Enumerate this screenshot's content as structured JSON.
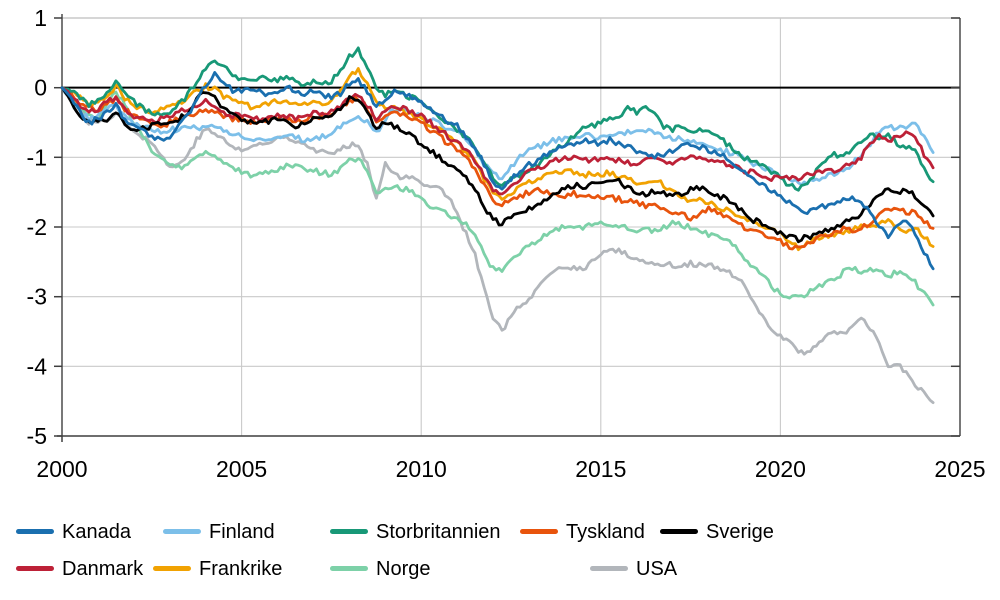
{
  "chart_data": {
    "type": "line",
    "title": "",
    "xlabel": "",
    "ylabel": "",
    "x_range": [
      2000,
      2025
    ],
    "y_range": [
      -5,
      1
    ],
    "x_tick_labels": [
      "2000",
      "2005",
      "2010",
      "2015",
      "2020",
      "2025"
    ],
    "x_tick_values": [
      2000,
      2005,
      2010,
      2015,
      2020,
      2025
    ],
    "y_tick_labels": [
      "1",
      "0",
      "-1",
      "-2",
      "-3",
      "-4",
      "-5"
    ],
    "y_tick_values": [
      1,
      0,
      -1,
      -2,
      -3,
      -4,
      -5
    ],
    "grid": true,
    "zero_line": true,
    "legend_position": "bottom-left",
    "x_start": 2000,
    "x_step": 0.25,
    "legend_rows": [
      [
        "Kanada",
        "Finland",
        "Storbritannien",
        "Tyskland",
        "Sverige"
      ],
      [
        "Danmark",
        "Frankrike",
        "Norge",
        "USA"
      ]
    ],
    "series": [
      {
        "name": "Kanada",
        "color": "#1A6FAF",
        "values": [
          0,
          -0.15,
          -0.35,
          -0.5,
          -0.45,
          -0.35,
          -0.25,
          -0.45,
          -0.55,
          -0.6,
          -0.7,
          -0.75,
          -0.7,
          -0.55,
          -0.4,
          -0.2,
          0.05,
          0.18,
          0.1,
          -0.05,
          -0.05,
          0,
          -0.05,
          -0.1,
          -0.05,
          0,
          -0.05,
          -0.1,
          -0.05,
          -0.1,
          -0.15,
          -0.08,
          0.05,
          0.12,
          -0.05,
          -0.3,
          -0.15,
          -0.05,
          -0.1,
          -0.15,
          -0.2,
          -0.3,
          -0.4,
          -0.5,
          -0.55,
          -0.7,
          -0.85,
          -1.1,
          -1.35,
          -1.45,
          -1.3,
          -1.2,
          -1.1,
          -1.05,
          -0.95,
          -0.9,
          -0.85,
          -0.8,
          -0.75,
          -0.8,
          -0.8,
          -0.75,
          -0.8,
          -0.85,
          -0.9,
          -0.95,
          -1,
          -0.95,
          -0.9,
          -0.85,
          -0.8,
          -0.85,
          -0.9,
          -0.95,
          -1,
          -1.1,
          -1.2,
          -1.3,
          -1.4,
          -1.5,
          -1.55,
          -1.65,
          -1.75,
          -1.8,
          -1.75,
          -1.7,
          -1.65,
          -1.6,
          -1.6,
          -1.65,
          -1.8,
          -2,
          -2.15,
          -2,
          -1.9,
          -2.1,
          -2.35,
          -2.6
        ]
      },
      {
        "name": "Finland",
        "color": "#7CBFE9",
        "values": [
          0,
          -0.2,
          -0.35,
          -0.45,
          -0.4,
          -0.3,
          -0.25,
          -0.4,
          -0.5,
          -0.55,
          -0.6,
          -0.65,
          -0.6,
          -0.6,
          -0.58,
          -0.58,
          -0.55,
          -0.58,
          -0.62,
          -0.68,
          -0.7,
          -0.72,
          -0.75,
          -0.72,
          -0.7,
          -0.7,
          -0.72,
          -0.75,
          -0.72,
          -0.7,
          -0.65,
          -0.55,
          -0.45,
          -0.4,
          -0.5,
          -0.65,
          -0.45,
          -0.3,
          -0.3,
          -0.35,
          -0.4,
          -0.45,
          -0.5,
          -0.6,
          -0.65,
          -0.75,
          -0.9,
          -1.1,
          -1.25,
          -1.3,
          -1.15,
          -1,
          -0.9,
          -0.85,
          -0.8,
          -0.75,
          -0.72,
          -0.7,
          -0.68,
          -0.7,
          -0.72,
          -0.7,
          -0.68,
          -0.65,
          -0.62,
          -0.6,
          -0.65,
          -0.7,
          -0.72,
          -0.75,
          -0.78,
          -0.8,
          -0.85,
          -0.9,
          -0.92,
          -0.95,
          -1,
          -1.1,
          -1.15,
          -1.2,
          -1.25,
          -1.32,
          -1.37,
          -1.35,
          -1.3,
          -1.28,
          -1.25,
          -1.2,
          -1.1,
          -0.95,
          -0.8,
          -0.62,
          -0.55,
          -0.6,
          -0.55,
          -0.52,
          -0.72,
          -0.93
        ]
      },
      {
        "name": "Storbritannien",
        "color": "#189877",
        "values": [
          0,
          -0.05,
          -0.15,
          -0.25,
          -0.2,
          -0.1,
          0.08,
          -0.05,
          -0.2,
          -0.3,
          -0.35,
          -0.4,
          -0.35,
          -0.25,
          -0.1,
          0.1,
          0.25,
          0.38,
          0.3,
          0.2,
          0.12,
          0.1,
          0.15,
          0.12,
          0.1,
          0.15,
          0.1,
          0.05,
          0.1,
          0.05,
          0.1,
          0.25,
          0.45,
          0.55,
          0.3,
          0,
          -0.1,
          -0.05,
          -0.1,
          -0.15,
          -0.2,
          -0.3,
          -0.4,
          -0.5,
          -0.6,
          -0.7,
          -0.85,
          -1.1,
          -1.3,
          -1.4,
          -1.3,
          -1.25,
          -1.2,
          -1.1,
          -1,
          -0.9,
          -0.8,
          -0.7,
          -0.6,
          -0.55,
          -0.5,
          -0.45,
          -0.4,
          -0.3,
          -0.35,
          -0.25,
          -0.4,
          -0.55,
          -0.6,
          -0.55,
          -0.6,
          -0.62,
          -0.65,
          -0.7,
          -0.8,
          -0.9,
          -1,
          -1.05,
          -1.1,
          -1.2,
          -1.3,
          -1.4,
          -1.45,
          -1.4,
          -1.2,
          -1.05,
          -0.95,
          -1,
          -0.9,
          -0.75,
          -0.65,
          -0.75,
          -0.7,
          -0.8,
          -0.85,
          -0.9,
          -1.15,
          -1.35
        ]
      },
      {
        "name": "Tyskland",
        "color": "#E8540D",
        "values": [
          0,
          -0.1,
          -0.2,
          -0.3,
          -0.3,
          -0.25,
          -0.15,
          -0.3,
          -0.4,
          -0.45,
          -0.5,
          -0.55,
          -0.5,
          -0.45,
          -0.4,
          -0.35,
          -0.3,
          -0.35,
          -0.4,
          -0.45,
          -0.45,
          -0.5,
          -0.48,
          -0.45,
          -0.42,
          -0.45,
          -0.48,
          -0.45,
          -0.4,
          -0.42,
          -0.38,
          -0.3,
          -0.2,
          -0.15,
          -0.3,
          -0.5,
          -0.4,
          -0.35,
          -0.4,
          -0.45,
          -0.5,
          -0.6,
          -0.7,
          -0.8,
          -0.9,
          -1,
          -1.15,
          -1.4,
          -1.6,
          -1.7,
          -1.6,
          -1.55,
          -1.5,
          -1.45,
          -1.5,
          -1.52,
          -1.55,
          -1.52,
          -1.55,
          -1.58,
          -1.55,
          -1.58,
          -1.6,
          -1.63,
          -1.65,
          -1.7,
          -1.68,
          -1.72,
          -1.78,
          -1.82,
          -1.88,
          -1.82,
          -1.75,
          -1.8,
          -1.85,
          -1.92,
          -2,
          -2.05,
          -2.1,
          -2.15,
          -2.2,
          -2.28,
          -2.3,
          -2.25,
          -2.18,
          -2.12,
          -2.08,
          -2.02,
          -2.05,
          -2,
          -1.95,
          -1.85,
          -1.75,
          -1.72,
          -1.8,
          -1.78,
          -1.92,
          -2.02
        ]
      },
      {
        "name": "Sverige",
        "color": "#000000",
        "values": [
          0,
          -0.2,
          -0.4,
          -0.5,
          -0.45,
          -0.5,
          -0.35,
          -0.5,
          -0.6,
          -0.58,
          -0.55,
          -0.52,
          -0.5,
          -0.45,
          -0.35,
          -0.15,
          -0.05,
          -0.12,
          -0.3,
          -0.4,
          -0.45,
          -0.48,
          -0.5,
          -0.48,
          -0.45,
          -0.5,
          -0.55,
          -0.5,
          -0.45,
          -0.42,
          -0.4,
          -0.3,
          -0.15,
          -0.18,
          -0.35,
          -0.6,
          -0.5,
          -0.55,
          -0.6,
          -0.7,
          -0.8,
          -0.9,
          -1,
          -1.1,
          -1.2,
          -1.3,
          -1.45,
          -1.7,
          -1.9,
          -1.95,
          -1.85,
          -1.8,
          -1.75,
          -1.7,
          -1.6,
          -1.5,
          -1.45,
          -1.4,
          -1.42,
          -1.4,
          -1.37,
          -1.3,
          -1.35,
          -1.45,
          -1.5,
          -1.55,
          -1.48,
          -1.5,
          -1.55,
          -1.52,
          -1.45,
          -1.45,
          -1.48,
          -1.55,
          -1.6,
          -1.7,
          -1.8,
          -1.9,
          -1.95,
          -2.05,
          -2.1,
          -2.15,
          -2.18,
          -2.15,
          -2.1,
          -2.05,
          -2,
          -1.95,
          -1.9,
          -1.8,
          -1.7,
          -1.55,
          -1.47,
          -1.5,
          -1.45,
          -1.55,
          -1.7,
          -1.84
        ]
      },
      {
        "name": "Danmark",
        "color": "#BD2137",
        "values": [
          0,
          -0.1,
          -0.25,
          -0.35,
          -0.3,
          -0.2,
          -0.15,
          -0.3,
          -0.4,
          -0.45,
          -0.5,
          -0.45,
          -0.4,
          -0.35,
          -0.3,
          -0.25,
          -0.2,
          -0.25,
          -0.35,
          -0.4,
          -0.4,
          -0.42,
          -0.45,
          -0.42,
          -0.4,
          -0.42,
          -0.45,
          -0.4,
          -0.35,
          -0.38,
          -0.35,
          -0.25,
          -0.15,
          -0.12,
          -0.25,
          -0.45,
          -0.3,
          -0.25,
          -0.3,
          -0.35,
          -0.4,
          -0.5,
          -0.6,
          -0.7,
          -0.8,
          -0.9,
          -1.05,
          -1.25,
          -1.45,
          -1.5,
          -1.4,
          -1.3,
          -1.2,
          -1.15,
          -1.1,
          -1.05,
          -1.02,
          -1,
          -1.05,
          -1.03,
          -1.03,
          -1,
          -1.05,
          -1.08,
          -1.1,
          -1.05,
          -1,
          -1.05,
          -1.1,
          -1.05,
          -1,
          -1,
          -1.02,
          -1.05,
          -1.1,
          -1.15,
          -1.2,
          -1.22,
          -1.25,
          -1.3,
          -1.28,
          -1.3,
          -1.3,
          -1.25,
          -1.2,
          -1.18,
          -1.18,
          -1.15,
          -1.1,
          -1,
          -0.8,
          -0.7,
          -0.75,
          -0.7,
          -0.65,
          -0.72,
          -0.95,
          -1.15
        ]
      },
      {
        "name": "Frankrike",
        "color": "#F1A202",
        "values": [
          0,
          -0.05,
          -0.15,
          -0.25,
          -0.2,
          -0.12,
          0.02,
          -0.15,
          -0.25,
          -0.3,
          -0.35,
          -0.3,
          -0.28,
          -0.22,
          -0.15,
          -0.05,
          0.02,
          -0.02,
          -0.12,
          -0.2,
          -0.22,
          -0.28,
          -0.25,
          -0.22,
          -0.18,
          -0.22,
          -0.25,
          -0.22,
          -0.2,
          -0.22,
          -0.18,
          -0.05,
          0.15,
          0.25,
          0.05,
          -0.22,
          -0.3,
          -0.3,
          -0.35,
          -0.4,
          -0.45,
          -0.52,
          -0.6,
          -0.7,
          -0.8,
          -0.92,
          -1.05,
          -1.3,
          -1.5,
          -1.6,
          -1.5,
          -1.42,
          -1.35,
          -1.3,
          -1.22,
          -1.2,
          -1.2,
          -1.22,
          -1.25,
          -1.25,
          -1.25,
          -1.22,
          -1.28,
          -1.32,
          -1.35,
          -1.38,
          -1.32,
          -1.4,
          -1.5,
          -1.55,
          -1.62,
          -1.62,
          -1.65,
          -1.7,
          -1.75,
          -1.8,
          -1.85,
          -1.92,
          -2,
          -2.05,
          -2.1,
          -2.2,
          -2.3,
          -2.25,
          -2.15,
          -2.12,
          -2.1,
          -2.08,
          -2.05,
          -1.95,
          -2,
          -1.95,
          -1.9,
          -2,
          -2.05,
          -2,
          -2.15,
          -2.28
        ]
      },
      {
        "name": "Norge",
        "color": "#7DD1A8",
        "values": [
          0,
          -0.15,
          -0.3,
          -0.4,
          -0.45,
          -0.25,
          -0.05,
          -0.25,
          -0.5,
          -0.7,
          -0.9,
          -1,
          -1.1,
          -1.15,
          -1.1,
          -1,
          -0.95,
          -1,
          -1.1,
          -1.15,
          -1.2,
          -1.25,
          -1.22,
          -1.2,
          -1.18,
          -1.12,
          -1.1,
          -1.15,
          -1.2,
          -1.22,
          -1.25,
          -1.15,
          -1.05,
          -1,
          -1.2,
          -1.5,
          -1.45,
          -1.4,
          -1.45,
          -1.5,
          -1.6,
          -1.7,
          -1.75,
          -1.8,
          -1.9,
          -1.95,
          -2.1,
          -2.4,
          -2.6,
          -2.65,
          -2.45,
          -2.35,
          -2.25,
          -2.2,
          -2.1,
          -2.05,
          -2,
          -1.98,
          -2,
          -1.97,
          -1.93,
          -1.95,
          -1.97,
          -2,
          -2.05,
          -2.05,
          -2.05,
          -2,
          -1.95,
          -1.97,
          -2,
          -2.05,
          -2.1,
          -2.15,
          -2.2,
          -2.3,
          -2.45,
          -2.6,
          -2.7,
          -2.85,
          -2.95,
          -3,
          -3.02,
          -2.95,
          -2.85,
          -2.8,
          -2.78,
          -2.65,
          -2.6,
          -2.65,
          -2.6,
          -2.65,
          -2.7,
          -2.65,
          -2.7,
          -2.8,
          -2.95,
          -3.12
        ]
      },
      {
        "name": "USA",
        "color": "#B2B6BB",
        "values": [
          0,
          -0.2,
          -0.35,
          -0.5,
          -0.5,
          -0.45,
          -0.35,
          -0.5,
          -0.6,
          -0.7,
          -0.8,
          -0.95,
          -1.15,
          -1.1,
          -0.95,
          -0.75,
          -0.6,
          -0.65,
          -0.75,
          -0.85,
          -0.9,
          -0.85,
          -0.82,
          -0.8,
          -0.72,
          -0.7,
          -0.75,
          -0.8,
          -0.88,
          -0.92,
          -0.95,
          -0.9,
          -0.82,
          -0.8,
          -1.1,
          -1.6,
          -1.05,
          -1.25,
          -1.3,
          -1.3,
          -1.35,
          -1.4,
          -1.45,
          -1.55,
          -1.8,
          -2.1,
          -2.4,
          -2.9,
          -3.3,
          -3.5,
          -3.25,
          -3.15,
          -3.05,
          -2.9,
          -2.7,
          -2.62,
          -2.6,
          -2.58,
          -2.6,
          -2.5,
          -2.4,
          -2.32,
          -2.35,
          -2.4,
          -2.45,
          -2.5,
          -2.55,
          -2.52,
          -2.55,
          -2.55,
          -2.52,
          -2.55,
          -2.55,
          -2.6,
          -2.65,
          -2.7,
          -2.85,
          -3.1,
          -3.3,
          -3.45,
          -3.55,
          -3.65,
          -3.78,
          -3.82,
          -3.7,
          -3.55,
          -3.5,
          -3.52,
          -3.45,
          -3.32,
          -3.45,
          -3.7,
          -4,
          -3.95,
          -4.1,
          -4.25,
          -4.4,
          -4.52
        ]
      }
    ],
    "style": {
      "grid_color": "#c9c9c9",
      "axis_color": "#3f3f3f",
      "zero_line_color": "#000000",
      "tick_label_color": "#000000",
      "jitter_amplitude": 0.04
    }
  }
}
